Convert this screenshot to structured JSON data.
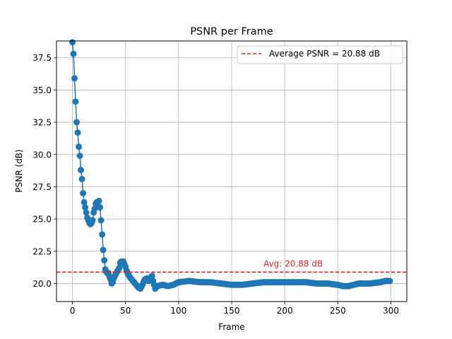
{
  "chart_data": {
    "type": "line",
    "title": "PSNR per Frame",
    "xlabel": "Frame",
    "ylabel": "PSNR (dB)",
    "xlim": [
      -15,
      315
    ],
    "ylim": [
      18.6,
      38.8
    ],
    "xticks": [
      0,
      50,
      100,
      150,
      200,
      250,
      300
    ],
    "yticks": [
      20.0,
      22.5,
      25.0,
      27.5,
      30.0,
      32.5,
      35.0,
      37.5
    ],
    "ytick_labels": [
      "20.0",
      "22.5",
      "25.0",
      "27.5",
      "30.0",
      "32.5",
      "35.0",
      "37.5"
    ],
    "grid": true,
    "legend_position": "top-right",
    "colors": {
      "series": "#1f77b4",
      "average": "#d62728"
    },
    "series": [
      {
        "marker": "circle",
        "anchors": [
          [
            0,
            38.7
          ],
          [
            1,
            37.8
          ],
          [
            2,
            35.9
          ],
          [
            3,
            34.1
          ],
          [
            4,
            32.5
          ],
          [
            5,
            31.7
          ],
          [
            6,
            30.6
          ],
          [
            7,
            29.9
          ],
          [
            8,
            28.8
          ],
          [
            9,
            28.1
          ],
          [
            10,
            27.0
          ],
          [
            11,
            26.3
          ],
          [
            12,
            25.9
          ],
          [
            13,
            25.5
          ],
          [
            14,
            25.1
          ],
          [
            15,
            24.9
          ],
          [
            16,
            24.7
          ],
          [
            17,
            24.6
          ],
          [
            18,
            24.7
          ],
          [
            19,
            24.9
          ],
          [
            20,
            25.5
          ],
          [
            21,
            25.8
          ],
          [
            22,
            26.2
          ],
          [
            23,
            26.3
          ],
          [
            24,
            26.3
          ],
          [
            25,
            26.4
          ],
          [
            26,
            25.9
          ],
          [
            27,
            24.9
          ],
          [
            28,
            23.8
          ],
          [
            29,
            22.6
          ],
          [
            30,
            21.8
          ],
          [
            31,
            21.1
          ],
          [
            32,
            20.9
          ],
          [
            33,
            20.8
          ],
          [
            34,
            20.8
          ],
          [
            35,
            20.5
          ],
          [
            36,
            20.3
          ],
          [
            37,
            20.0
          ],
          [
            38,
            20.1
          ],
          [
            39,
            20.4
          ],
          [
            40,
            20.6
          ],
          [
            42,
            20.9
          ],
          [
            44,
            21.2
          ],
          [
            45,
            21.6
          ],
          [
            46,
            21.7
          ],
          [
            47,
            21.6
          ],
          [
            48,
            21.7
          ],
          [
            49,
            21.5
          ],
          [
            50,
            21.3
          ],
          [
            51,
            21.0
          ],
          [
            52,
            20.8
          ],
          [
            54,
            20.5
          ],
          [
            56,
            20.3
          ],
          [
            58,
            20.1
          ],
          [
            60,
            19.9
          ],
          [
            62,
            19.7
          ],
          [
            64,
            19.6
          ],
          [
            66,
            19.9
          ],
          [
            68,
            20.3
          ],
          [
            70,
            20.4
          ],
          [
            72,
            20.2
          ],
          [
            74,
            20.5
          ],
          [
            75,
            20.6
          ],
          [
            76,
            20.2
          ],
          [
            77,
            19.9
          ],
          [
            78,
            19.6
          ],
          [
            80,
            19.8
          ],
          [
            85,
            19.9
          ],
          [
            90,
            19.8
          ],
          [
            95,
            19.9
          ],
          [
            100,
            20.1
          ],
          [
            110,
            20.2
          ],
          [
            120,
            20.1
          ],
          [
            130,
            20.1
          ],
          [
            140,
            20.0
          ],
          [
            150,
            19.9
          ],
          [
            160,
            19.9
          ],
          [
            170,
            20.0
          ],
          [
            180,
            20.1
          ],
          [
            190,
            20.1
          ],
          [
            200,
            20.1
          ],
          [
            210,
            20.1
          ],
          [
            220,
            20.1
          ],
          [
            230,
            20.0
          ],
          [
            240,
            20.0
          ],
          [
            250,
            19.9
          ],
          [
            255,
            19.8
          ],
          [
            260,
            19.8
          ],
          [
            265,
            19.9
          ],
          [
            270,
            20.0
          ],
          [
            280,
            20.0
          ],
          [
            290,
            20.1
          ],
          [
            295,
            20.2
          ],
          [
            299,
            20.2
          ]
        ]
      }
    ],
    "average_line": {
      "y": 20.88,
      "legend_label": "Average PSNR = 20.88 dB"
    },
    "annotations": [
      {
        "x": 180,
        "y": 21.3,
        "text": "Avg: 20.88 dB"
      }
    ]
  }
}
